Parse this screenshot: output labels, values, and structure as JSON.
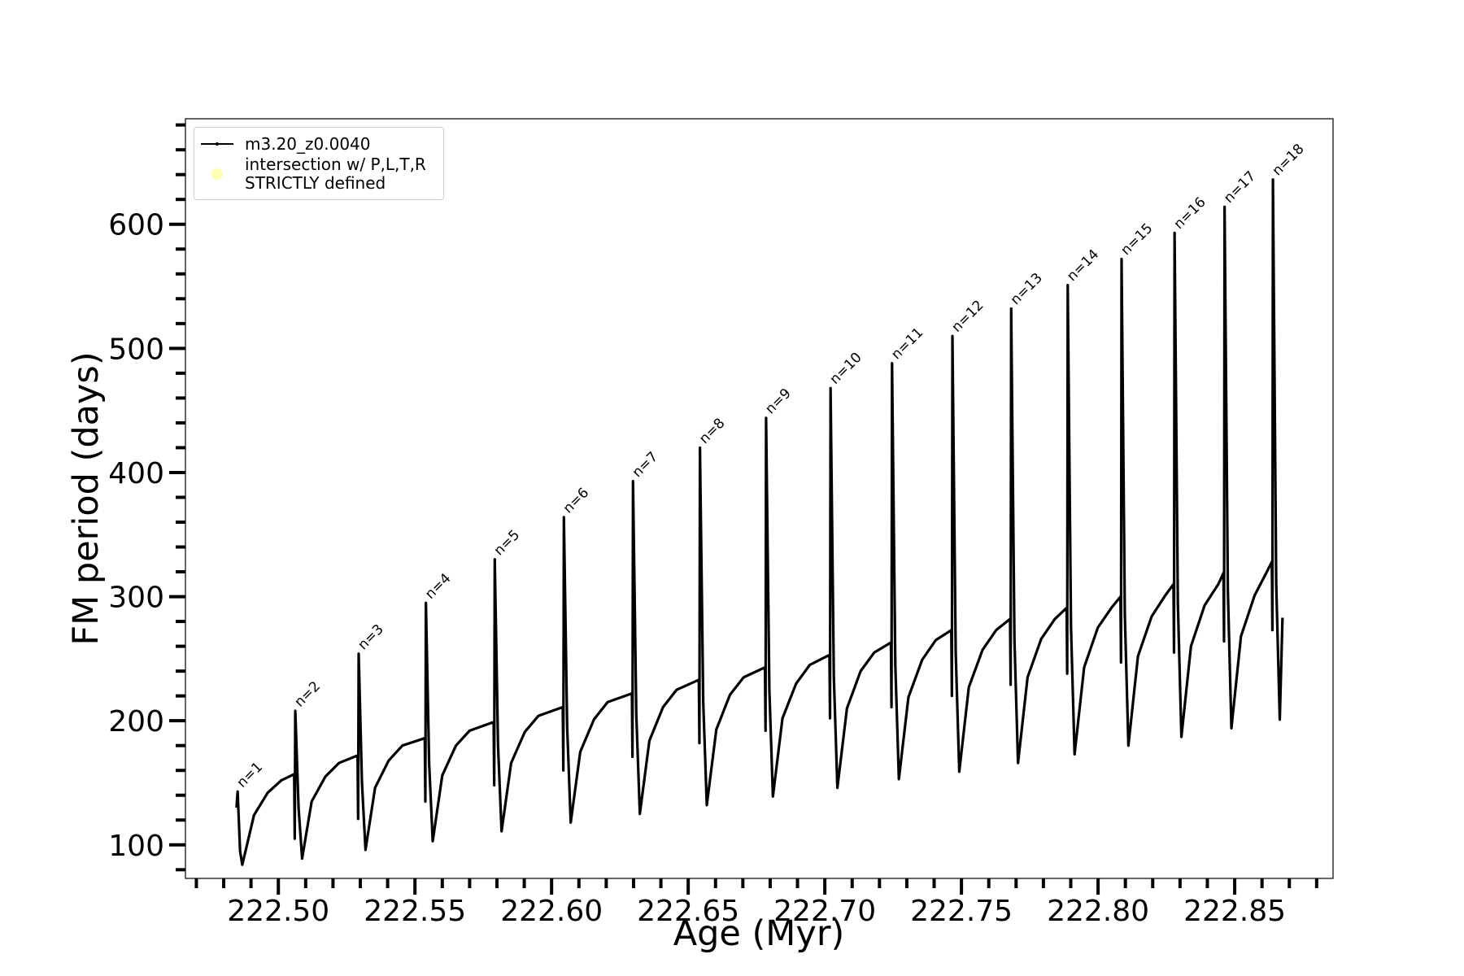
{
  "chart_data": {
    "type": "line",
    "xlabel": "Age (Myr)",
    "ylabel": "FM period (days)",
    "xlim": [
      222.466,
      222.886
    ],
    "ylim": [
      73,
      685
    ],
    "xticks": [
      {
        "value": 222.5,
        "label": "222.50"
      },
      {
        "value": 222.55,
        "label": "222.55"
      },
      {
        "value": 222.6,
        "label": "222.60"
      },
      {
        "value": 222.65,
        "label": "222.65"
      },
      {
        "value": 222.7,
        "label": "222.70"
      },
      {
        "value": 222.75,
        "label": "222.75"
      },
      {
        "value": 222.8,
        "label": "222.80"
      },
      {
        "value": 222.85,
        "label": "222.85"
      }
    ],
    "yticks": [
      100,
      200,
      300,
      400,
      500,
      600
    ],
    "xticks_minor": [
      222.47,
      222.48,
      222.49,
      222.51,
      222.52,
      222.53,
      222.54,
      222.56,
      222.57,
      222.58,
      222.59,
      222.61,
      222.62,
      222.63,
      222.64,
      222.66,
      222.67,
      222.68,
      222.69,
      222.71,
      222.72,
      222.73,
      222.74,
      222.76,
      222.77,
      222.78,
      222.79,
      222.81,
      222.82,
      222.83,
      222.84,
      222.86,
      222.87,
      222.88
    ],
    "yticks_minor": [
      80,
      120,
      140,
      160,
      180,
      220,
      240,
      260,
      280,
      320,
      340,
      360,
      380,
      420,
      440,
      460,
      480,
      520,
      540,
      560,
      580,
      620,
      640,
      660,
      680
    ],
    "grid": false,
    "legend": "upper left",
    "x": [
      222.4847,
      222.4851,
      222.486,
      222.4868,
      222.4911,
      222.4961,
      222.5011,
      222.5058,
      222.506,
      222.5062,
      222.5074,
      222.5087,
      222.5122,
      222.5172,
      222.5222,
      222.529,
      222.5292,
      222.5294,
      222.5306,
      222.5319,
      222.5354,
      222.5404,
      222.5454,
      222.5536,
      222.5538,
      222.554,
      222.5552,
      222.5565,
      222.56,
      222.565,
      222.57,
      222.5788,
      222.579,
      222.5792,
      222.5804,
      222.5817,
      222.5852,
      222.5902,
      222.5952,
      222.6041,
      222.6043,
      222.6045,
      222.6057,
      222.607,
      222.6105,
      222.6155,
      222.6205,
      222.6294,
      222.6296,
      222.6298,
      222.631,
      222.6323,
      222.6358,
      222.6408,
      222.6458,
      222.6539,
      222.6541,
      222.6543,
      222.6555,
      222.6568,
      222.6603,
      222.6653,
      222.6703,
      222.6781,
      222.6783,
      222.6785,
      222.6797,
      222.681,
      222.6845,
      222.6895,
      222.6945,
      222.7017,
      222.7019,
      222.7021,
      222.7033,
      222.7046,
      222.7081,
      222.7131,
      222.7181,
      222.7242,
      222.7244,
      222.7246,
      222.7258,
      222.7271,
      222.7306,
      222.7356,
      222.7406,
      222.7463,
      222.7465,
      222.7467,
      222.7479,
      222.7492,
      222.7527,
      222.7577,
      222.7627,
      222.7678,
      222.768,
      222.7682,
      222.7694,
      222.7707,
      222.7742,
      222.7792,
      222.7842,
      222.7885,
      222.7887,
      222.7889,
      222.7901,
      222.7914,
      222.7949,
      222.7999,
      222.8049,
      222.8082,
      222.8084,
      222.8086,
      222.8098,
      222.8111,
      222.8146,
      222.8196,
      222.8246,
      222.8276,
      222.8278,
      222.828,
      222.8292,
      222.8305,
      222.834,
      222.839,
      222.844,
      222.8459,
      222.8461,
      222.8463,
      222.8475,
      222.8488,
      222.8523,
      222.8573,
      222.8613,
      222.8636,
      222.8638,
      222.864,
      222.8652,
      222.8665,
      222.8675
    ],
    "series": [
      {
        "name": "m3.20_z0.0040",
        "color": "#000000",
        "values": [
          130,
          143,
          95,
          84,
          124,
          142,
          152,
          157,
          105,
          208,
          130,
          89,
          135,
          155,
          166,
          172,
          121,
          254,
          150,
          96,
          146,
          168,
          180,
          186,
          135,
          295,
          165,
          103,
          156,
          180,
          192,
          199,
          148,
          330,
          180,
          111,
          166,
          191,
          204,
          211,
          160,
          364,
          195,
          118,
          175,
          201,
          215,
          222,
          171,
          393,
          205,
          125,
          184,
          211,
          225,
          233,
          182,
          420,
          215,
          132,
          193,
          221,
          235,
          243,
          192,
          444,
          225,
          139,
          202,
          230,
          245,
          253,
          202,
          468,
          235,
          146,
          210,
          240,
          255,
          263,
          211,
          488,
          245,
          153,
          219,
          249,
          265,
          273,
          220,
          510,
          255,
          159,
          227,
          257,
          273,
          282,
          229,
          532,
          265,
          166,
          235,
          266,
          282,
          291,
          238,
          551,
          275,
          173,
          243,
          275,
          291,
          300,
          247,
          572,
          285,
          180,
          252,
          284,
          301,
          310,
          255,
          593,
          295,
          187,
          260,
          293,
          310,
          319,
          264,
          614,
          305,
          194,
          268,
          301,
          318,
          328,
          273,
          636,
          310,
          201,
          283
        ]
      },
      {
        "name": "intersection w/ P,L,T,R\nSTRICTLY defined",
        "color": "#ffffb3",
        "marker": "circle"
      }
    ],
    "annotations": [
      {
        "text": "n=1",
        "x": 222.4851,
        "y": 143
      },
      {
        "text": "n=2",
        "x": 222.5062,
        "y": 208
      },
      {
        "text": "n=3",
        "x": 222.5294,
        "y": 254
      },
      {
        "text": "n=4",
        "x": 222.554,
        "y": 295
      },
      {
        "text": "n=5",
        "x": 222.5792,
        "y": 330
      },
      {
        "text": "n=6",
        "x": 222.6045,
        "y": 364
      },
      {
        "text": "n=7",
        "x": 222.6298,
        "y": 393
      },
      {
        "text": "n=8",
        "x": 222.6543,
        "y": 420
      },
      {
        "text": "n=9",
        "x": 222.6785,
        "y": 444
      },
      {
        "text": "n=10",
        "x": 222.7021,
        "y": 468
      },
      {
        "text": "n=11",
        "x": 222.7246,
        "y": 488
      },
      {
        "text": "n=12",
        "x": 222.7467,
        "y": 510
      },
      {
        "text": "n=13",
        "x": 222.7682,
        "y": 532
      },
      {
        "text": "n=14",
        "x": 222.7889,
        "y": 551
      },
      {
        "text": "n=15",
        "x": 222.8086,
        "y": 572
      },
      {
        "text": "n=16",
        "x": 222.828,
        "y": 593
      },
      {
        "text": "n=17",
        "x": 222.8463,
        "y": 614
      },
      {
        "text": "n=18",
        "x": 222.864,
        "y": 636
      }
    ]
  }
}
